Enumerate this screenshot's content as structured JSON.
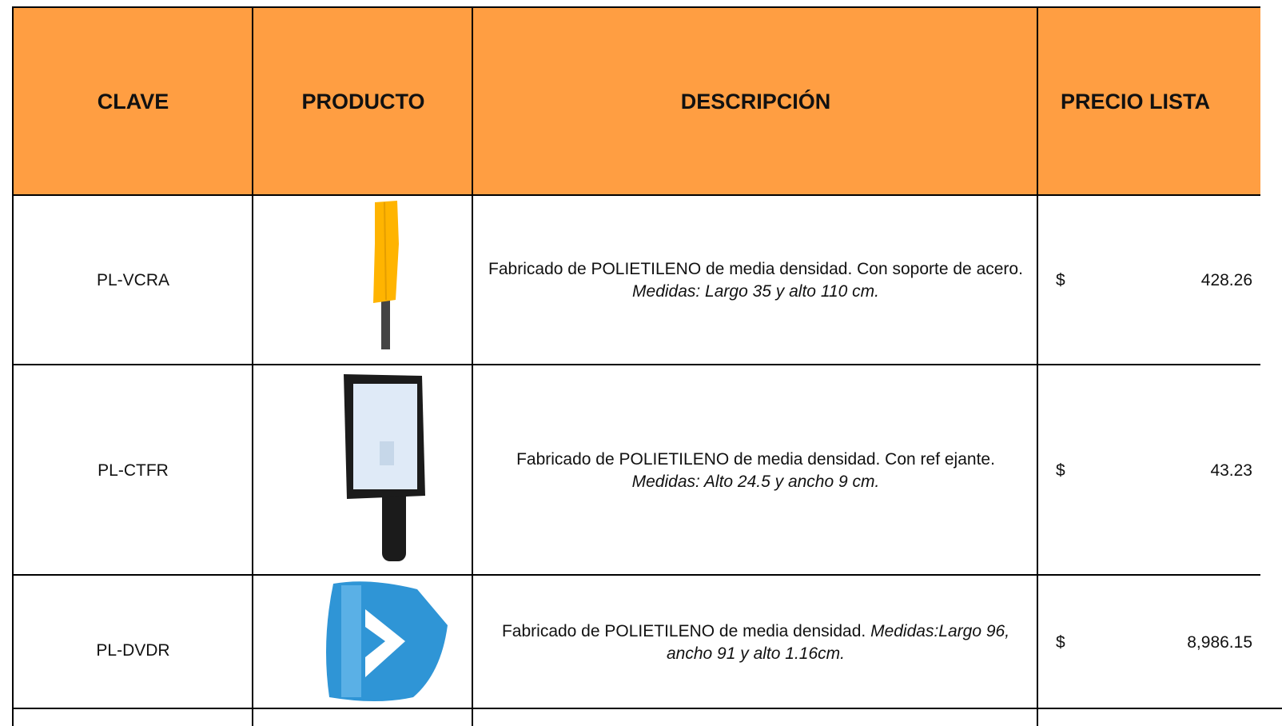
{
  "table": {
    "header": [
      "CLAVE",
      "PRODUCTO",
      "DESCRIPCIÓN",
      "PRECIO LISTA"
    ],
    "rows": [
      {
        "clave": "PL-VCRA",
        "description": "Fabricado de POLIETILENO de media densidad. Con soporte de acero.",
        "measures": "Medidas: Largo 35 y alto 110 cm.",
        "currency": "$",
        "price": "428.26"
      },
      {
        "clave": "PL-CTFR",
        "description": "Fabricado de POLIETILENO de media densidad. Con ref ejante.",
        "measures": "Medidas: Alto 24.5 y ancho 9 cm.",
        "currency": "$",
        "price": "43.23"
      },
      {
        "clave": "PL-DVDR",
        "description": "Fabricado de POLIETILENO de media densidad.",
        "measures": "Medidas:Largo 96, ancho 91 y alto 1.16cm.",
        "currency": "$",
        "price": "8,986.15"
      }
    ]
  }
}
